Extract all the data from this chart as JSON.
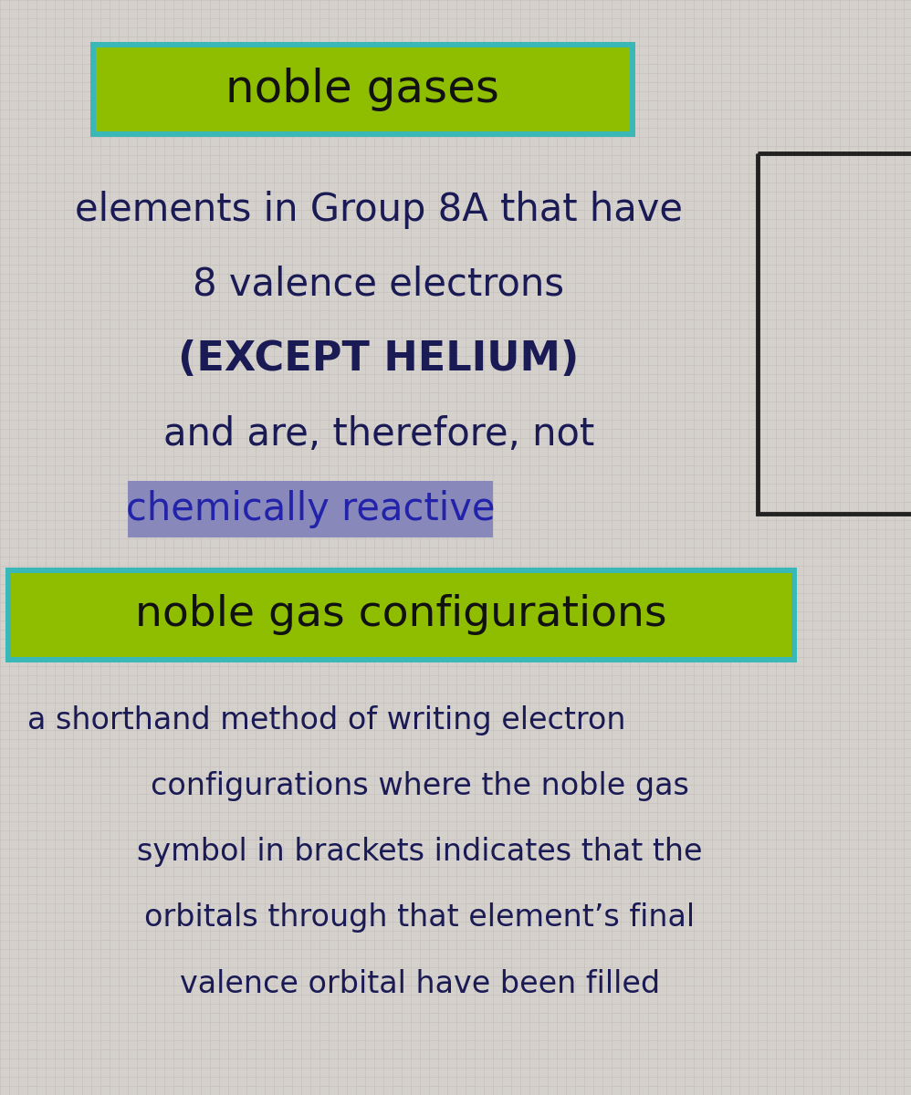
{
  "bg_color": "#d4d0cc",
  "grid_color": "#c0bbb6",
  "title1": "noble gases",
  "title1_bg": "#8fbe00",
  "title1_border": "#3ab8b8",
  "title1_text_color": "#111111",
  "body1_lines": [
    "elements in Group 8A that have",
    "8 valence electrons",
    "(EXCEPT HELIUM)",
    "and are, therefore, not"
  ],
  "body1_fontsizes": [
    30,
    30,
    32,
    30
  ],
  "body1_fontweights": [
    "normal",
    "normal",
    "bold",
    "normal"
  ],
  "highlight_text": "chemically reactive",
  "highlight_bg": "#8888bb",
  "highlight_text_color": "#2222aa",
  "body_text_color": "#1a1a55",
  "title2": "noble gas configurations",
  "title2_bg": "#8fbe00",
  "title2_border": "#3ab8b8",
  "title2_text_color": "#111111",
  "body2_lines": [
    "a shorthand method of writing electron",
    "configurations where the noble gas",
    "symbol in brackets indicates that the",
    "orbitals through that element’s final",
    "valence orbital have been filled"
  ],
  "body2_text_color": "#1a1a55",
  "body2_fontsize": 24,
  "banner1_fontsize": 36,
  "banner2_fontsize": 34,
  "body1_fontsize": 30
}
